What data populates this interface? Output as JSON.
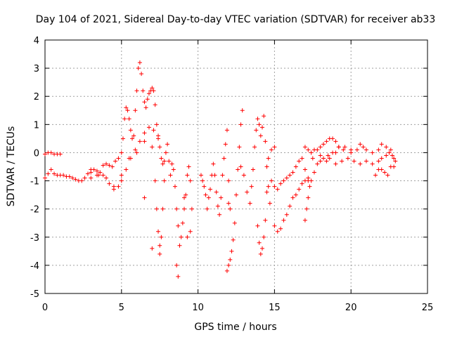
{
  "chart_data": {
    "type": "scatter",
    "title": "Day 104 of 2021, Sidereal Day-to-day VTEC variation (SDTVAR) for receiver ab33",
    "xlabel": "GPS time / hours",
    "ylabel": "SDTVAR / TECUs",
    "xlim": [
      0,
      25
    ],
    "ylim": [
      -5,
      4
    ],
    "xticks": [
      0,
      5,
      10,
      15,
      20,
      25
    ],
    "yticks": [
      -5,
      -4,
      -3,
      -2,
      -1,
      0,
      1,
      2,
      3,
      4
    ],
    "xtick_labels": [
      "0",
      "5",
      "10",
      "15",
      "20",
      "25"
    ],
    "ytick_labels": [
      "-5",
      "-4",
      "-3",
      "-2",
      "-1",
      "0",
      "1",
      "2",
      "3",
      "4"
    ],
    "grid": true,
    "marker": "plus",
    "color": "#ff0000",
    "series": [
      {
        "name": "SDTVAR",
        "points": [
          [
            0.0,
            -0.05
          ],
          [
            0.2,
            0.0
          ],
          [
            0.4,
            0.0
          ],
          [
            0.6,
            -0.05
          ],
          [
            0.8,
            -0.05
          ],
          [
            1.0,
            -0.05
          ],
          [
            0.0,
            -0.9
          ],
          [
            0.2,
            -0.75
          ],
          [
            0.4,
            -0.6
          ],
          [
            0.6,
            -0.75
          ],
          [
            0.8,
            -0.8
          ],
          [
            1.0,
            -0.8
          ],
          [
            1.2,
            -0.8
          ],
          [
            1.4,
            -0.85
          ],
          [
            1.6,
            -0.85
          ],
          [
            1.8,
            -0.9
          ],
          [
            2.0,
            -0.95
          ],
          [
            2.2,
            -1.0
          ],
          [
            2.4,
            -1.0
          ],
          [
            2.6,
            -0.9
          ],
          [
            2.8,
            -0.75
          ],
          [
            3.0,
            -0.6
          ],
          [
            3.2,
            -0.6
          ],
          [
            3.4,
            -0.8
          ],
          [
            3.6,
            -0.7
          ],
          [
            3.8,
            -0.45
          ],
          [
            4.0,
            -0.4
          ],
          [
            4.2,
            -0.45
          ],
          [
            4.4,
            -0.5
          ],
          [
            4.6,
            -0.3
          ],
          [
            4.8,
            -0.2
          ],
          [
            5.0,
            0.0
          ],
          [
            5.1,
            0.5
          ],
          [
            5.2,
            1.2
          ],
          [
            5.3,
            1.6
          ],
          [
            5.4,
            1.5
          ],
          [
            5.5,
            1.2
          ],
          [
            5.6,
            0.8
          ],
          [
            5.7,
            0.5
          ],
          [
            5.8,
            0.6
          ],
          [
            5.9,
            1.5
          ],
          [
            6.0,
            2.2
          ],
          [
            6.1,
            3.0
          ],
          [
            6.2,
            3.2
          ],
          [
            6.3,
            2.8
          ],
          [
            6.4,
            2.2
          ],
          [
            6.5,
            1.8
          ],
          [
            6.6,
            1.6
          ],
          [
            6.7,
            1.9
          ],
          [
            6.8,
            2.1
          ],
          [
            6.9,
            2.2
          ],
          [
            7.0,
            2.3
          ],
          [
            7.1,
            2.2
          ],
          [
            7.2,
            1.7
          ],
          [
            7.3,
            1.0
          ],
          [
            7.4,
            0.5
          ],
          [
            7.5,
            0.2
          ],
          [
            7.6,
            -0.2
          ],
          [
            7.7,
            -0.4
          ],
          [
            7.8,
            -0.3
          ],
          [
            3.0,
            -0.7
          ],
          [
            3.4,
            -0.65
          ],
          [
            3.8,
            -0.8
          ],
          [
            4.2,
            -1.1
          ],
          [
            4.5,
            -1.3
          ],
          [
            4.8,
            -1.2
          ],
          [
            5.0,
            -1.0
          ],
          [
            5.3,
            -0.6
          ],
          [
            5.6,
            -0.2
          ],
          [
            5.9,
            0.1
          ],
          [
            6.2,
            0.4
          ],
          [
            6.5,
            0.7
          ],
          [
            6.8,
            0.9
          ],
          [
            7.1,
            0.8
          ],
          [
            7.4,
            0.6
          ],
          [
            3.0,
            -0.9
          ],
          [
            3.5,
            -0.8
          ],
          [
            4.0,
            -0.9
          ],
          [
            4.5,
            -1.2
          ],
          [
            5.0,
            -0.8
          ],
          [
            5.5,
            -0.2
          ],
          [
            6.0,
            0.0
          ],
          [
            6.5,
            0.4
          ],
          [
            7.0,
            0.2
          ],
          [
            7.2,
            -1.0
          ],
          [
            7.3,
            -2.0
          ],
          [
            7.4,
            -2.8
          ],
          [
            7.5,
            -3.3
          ],
          [
            7.6,
            -3.0
          ],
          [
            7.7,
            -2.0
          ],
          [
            7.8,
            -1.0
          ],
          [
            7.9,
            0.0
          ],
          [
            8.0,
            0.3
          ],
          [
            8.1,
            -0.3
          ],
          [
            8.2,
            -0.8
          ],
          [
            8.3,
            -0.4
          ],
          [
            8.4,
            -0.6
          ],
          [
            8.5,
            -1.2
          ],
          [
            8.6,
            -2.0
          ],
          [
            8.7,
            -2.6
          ],
          [
            8.8,
            -3.3
          ],
          [
            8.9,
            -3.0
          ],
          [
            9.0,
            -2.5
          ],
          [
            9.1,
            -2.0
          ],
          [
            9.2,
            -1.5
          ],
          [
            9.3,
            -0.8
          ],
          [
            9.4,
            -0.5
          ],
          [
            9.5,
            -1.0
          ],
          [
            9.6,
            -2.0
          ],
          [
            9.5,
            -2.8
          ],
          [
            9.3,
            -3.0
          ],
          [
            9.1,
            -1.6
          ],
          [
            8.7,
            -4.4
          ],
          [
            8.6,
            -4.0
          ],
          [
            6.5,
            -1.6
          ],
          [
            7.5,
            -3.6
          ],
          [
            7.0,
            -3.4
          ],
          [
            10.2,
            -0.8
          ],
          [
            10.3,
            -1.0
          ],
          [
            10.4,
            -1.2
          ],
          [
            10.5,
            -1.5
          ],
          [
            10.6,
            -2.0
          ],
          [
            10.7,
            -1.6
          ],
          [
            10.8,
            -1.3
          ],
          [
            10.9,
            -0.8
          ],
          [
            11.0,
            -0.4
          ],
          [
            11.1,
            -0.8
          ],
          [
            11.2,
            -1.4
          ],
          [
            11.3,
            -1.9
          ],
          [
            11.4,
            -2.2
          ],
          [
            11.5,
            -1.6
          ],
          [
            11.6,
            -0.8
          ],
          [
            11.7,
            -0.2
          ],
          [
            11.8,
            0.3
          ],
          [
            11.9,
            0.8
          ],
          [
            12.0,
            -1.0
          ],
          [
            12.0,
            -1.8
          ],
          [
            12.1,
            -2.0
          ],
          [
            11.9,
            -4.2
          ],
          [
            12.0,
            -4.0
          ],
          [
            12.1,
            -3.8
          ],
          [
            12.2,
            -3.5
          ],
          [
            12.3,
            -3.1
          ],
          [
            12.4,
            -2.5
          ],
          [
            12.5,
            -1.5
          ],
          [
            12.6,
            -0.6
          ],
          [
            12.7,
            0.2
          ],
          [
            12.8,
            1.0
          ],
          [
            12.9,
            1.5
          ],
          [
            12.8,
            -0.5
          ],
          [
            13.0,
            -0.8
          ],
          [
            13.2,
            -1.4
          ],
          [
            13.4,
            -1.8
          ],
          [
            13.5,
            -1.2
          ],
          [
            13.6,
            -0.6
          ],
          [
            13.7,
            0.2
          ],
          [
            13.8,
            0.8
          ],
          [
            13.9,
            1.2
          ],
          [
            14.0,
            1.0
          ],
          [
            14.1,
            0.6
          ],
          [
            14.2,
            0.9
          ],
          [
            14.3,
            1.3
          ],
          [
            14.4,
            0.4
          ],
          [
            14.5,
            -0.5
          ],
          [
            14.6,
            -1.2
          ],
          [
            14.7,
            -1.8
          ],
          [
            13.9,
            -2.6
          ],
          [
            14.0,
            -3.2
          ],
          [
            14.1,
            -3.6
          ],
          [
            14.2,
            -3.4
          ],
          [
            14.3,
            -3.0
          ],
          [
            14.4,
            -2.4
          ],
          [
            14.5,
            -1.4
          ],
          [
            14.8,
            -1.0
          ],
          [
            15.0,
            0.2
          ],
          [
            14.8,
            0.1
          ],
          [
            14.6,
            -0.2
          ],
          [
            15.0,
            -2.6
          ],
          [
            15.2,
            -2.8
          ],
          [
            15.4,
            -2.7
          ],
          [
            15.6,
            -2.4
          ],
          [
            15.8,
            -2.2
          ],
          [
            16.0,
            -1.9
          ],
          [
            16.2,
            -1.6
          ],
          [
            16.4,
            -1.5
          ],
          [
            16.6,
            -1.3
          ],
          [
            16.8,
            -1.1
          ],
          [
            17.0,
            -1.0
          ],
          [
            17.2,
            -0.9
          ],
          [
            15.0,
            -1.2
          ],
          [
            15.2,
            -1.3
          ],
          [
            15.4,
            -1.1
          ],
          [
            15.6,
            -1.0
          ],
          [
            15.8,
            -0.9
          ],
          [
            16.0,
            -0.8
          ],
          [
            16.2,
            -0.7
          ],
          [
            16.4,
            -0.5
          ],
          [
            16.6,
            -0.3
          ],
          [
            16.8,
            -0.2
          ],
          [
            17.0,
            -0.6
          ],
          [
            17.2,
            -1.0
          ],
          [
            17.0,
            -2.4
          ],
          [
            17.1,
            -2.0
          ],
          [
            17.2,
            -1.6
          ],
          [
            17.3,
            -1.2
          ],
          [
            17.4,
            -1.0
          ],
          [
            17.6,
            -0.7
          ],
          [
            17.8,
            -0.4
          ],
          [
            18.0,
            -0.3
          ],
          [
            18.2,
            -0.2
          ],
          [
            18.4,
            -0.3
          ],
          [
            18.6,
            -0.2
          ],
          [
            18.8,
            0.0
          ],
          [
            17.0,
            0.2
          ],
          [
            17.2,
            0.1
          ],
          [
            17.4,
            0.0
          ],
          [
            17.6,
            0.1
          ],
          [
            17.8,
            0.1
          ],
          [
            18.0,
            0.2
          ],
          [
            18.2,
            0.3
          ],
          [
            18.4,
            0.4
          ],
          [
            18.6,
            0.5
          ],
          [
            18.8,
            0.5
          ],
          [
            19.0,
            0.4
          ],
          [
            19.2,
            0.2
          ],
          [
            17.5,
            -0.2
          ],
          [
            18.0,
            -0.1
          ],
          [
            18.5,
            -0.1
          ],
          [
            19.0,
            0.0
          ],
          [
            19.5,
            0.1
          ],
          [
            20.0,
            0.1
          ],
          [
            19.0,
            -0.4
          ],
          [
            19.4,
            -0.3
          ],
          [
            19.8,
            -0.2
          ],
          [
            20.2,
            -0.3
          ],
          [
            20.6,
            -0.4
          ],
          [
            21.0,
            -0.3
          ],
          [
            21.4,
            -0.4
          ],
          [
            21.8,
            -0.3
          ],
          [
            22.0,
            -0.2
          ],
          [
            22.3,
            -0.1
          ],
          [
            22.5,
            0.0
          ],
          [
            22.7,
            -0.1
          ],
          [
            19.2,
            0.2
          ],
          [
            19.6,
            0.2
          ],
          [
            20.0,
            0.0
          ],
          [
            20.4,
            0.1
          ],
          [
            20.6,
            0.3
          ],
          [
            20.8,
            0.2
          ],
          [
            21.0,
            0.1
          ],
          [
            21.4,
            0.0
          ],
          [
            21.8,
            0.1
          ],
          [
            22.0,
            0.3
          ],
          [
            22.3,
            0.2
          ],
          [
            22.6,
            0.1
          ],
          [
            21.6,
            -0.8
          ],
          [
            21.8,
            -0.6
          ],
          [
            22.0,
            -0.6
          ],
          [
            22.2,
            -0.7
          ],
          [
            22.4,
            -0.8
          ],
          [
            22.6,
            -0.5
          ],
          [
            22.8,
            -0.2
          ],
          [
            22.8,
            -0.5
          ],
          [
            22.9,
            -0.3
          ]
        ]
      }
    ]
  }
}
